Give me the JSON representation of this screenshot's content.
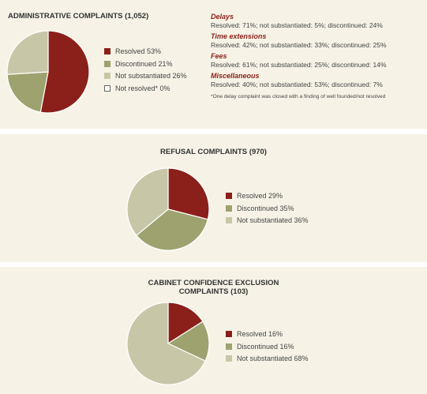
{
  "colors": {
    "resolved": "#8b1f1a",
    "discontinued": "#9da26f",
    "not_substantiated": "#c7c7a8",
    "not_resolved": "#ffffff",
    "panel_bg": "#f6f3e6"
  },
  "admin": {
    "notes": [
      {
        "heading": "Delays",
        "text": "Resolved: 71%; not substantiated: 5%; discontinued: 24%"
      },
      {
        "heading": "Time extensions",
        "text": "Resolved: 42%; not substantiated: 33%; discontinued: 25%"
      },
      {
        "heading": "Fees",
        "text": "Resolved: 61%; not substantiated: 25%; discontinued: 14%"
      },
      {
        "heading": "Miscellaneous",
        "text": "Resolved: 40%; not substantiated: 53%; discontinued: 7%"
      }
    ],
    "footnote": "*One delay complaint was closed with a finding of well founded/not resolved"
  },
  "chart_data": [
    {
      "type": "pie",
      "title": "ADMINISTRATIVE COMPLAINTS (1,052)",
      "slices": [
        {
          "label": "Resolved 53%",
          "value": 53,
          "color": "#8b1f1a"
        },
        {
          "label": "Discontinued 21%",
          "value": 21,
          "color": "#9da26f"
        },
        {
          "label": "Not substantiated 26%",
          "value": 26,
          "color": "#c7c7a8"
        },
        {
          "label": "Not resolved* 0%",
          "value": 0,
          "color": "#ffffff"
        }
      ]
    },
    {
      "type": "pie",
      "title": "REFUSAL COMPLAINTS (970)",
      "slices": [
        {
          "label": "Resolved 29%",
          "value": 29,
          "color": "#8b1f1a"
        },
        {
          "label": "Discontinued 35%",
          "value": 35,
          "color": "#9da26f"
        },
        {
          "label": "Not substantiated 36%",
          "value": 36,
          "color": "#c7c7a8"
        }
      ]
    },
    {
      "type": "pie",
      "title_lines": [
        "CABINET CONFIDENCE EXCLUSION",
        "COMPLAINTS (103)"
      ],
      "slices": [
        {
          "label": "Resolved 16%",
          "value": 16,
          "color": "#8b1f1a"
        },
        {
          "label": "Discontinued 16%",
          "value": 16,
          "color": "#9da26f"
        },
        {
          "label": "Not substantiated 68%",
          "value": 68,
          "color": "#c7c7a8"
        }
      ]
    }
  ]
}
